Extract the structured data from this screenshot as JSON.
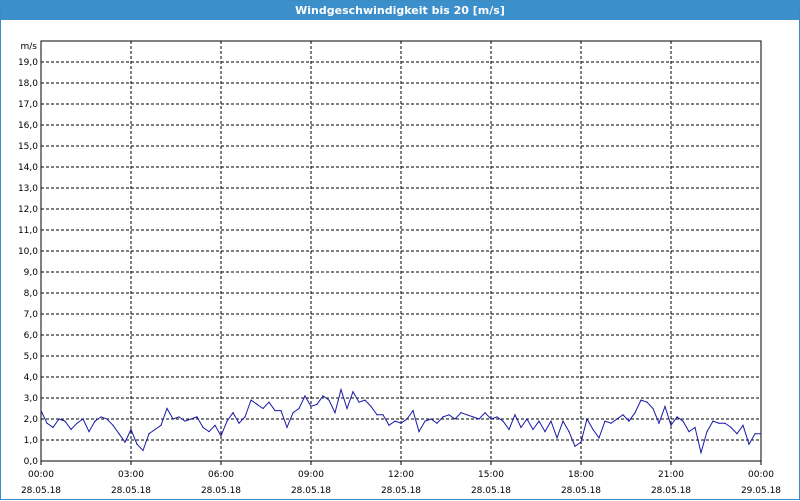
{
  "window": {
    "title": "Windgeschwindigkeit bis 20 [m/s]"
  },
  "colors": {
    "titlebar": "#3b8fca",
    "line": "#1a1aa6",
    "grid": "#000000"
  },
  "chart_data": {
    "type": "line",
    "title": "Windgeschwindigkeit bis 20 [m/s]",
    "ylabel": "m/s",
    "ylim": [
      0,
      20
    ],
    "xlim_hours": [
      0,
      24
    ],
    "grid": true,
    "y_ticks": [
      "0,0",
      "1,0",
      "2,0",
      "3,0",
      "4,0",
      "5,0",
      "6,0",
      "7,0",
      "8,0",
      "9,0",
      "10,0",
      "11,0",
      "12,0",
      "13,0",
      "14,0",
      "15,0",
      "16,0",
      "17,0",
      "18,0",
      "19,0"
    ],
    "x_ticks": [
      {
        "time": "00:00",
        "date": "28.05.18"
      },
      {
        "time": "03:00",
        "date": "28.05.18"
      },
      {
        "time": "06:00",
        "date": "28.05.18"
      },
      {
        "time": "09:00",
        "date": "28.05.18"
      },
      {
        "time": "12:00",
        "date": "28.05.18"
      },
      {
        "time": "15:00",
        "date": "28.05.18"
      },
      {
        "time": "18:00",
        "date": "28.05.18"
      },
      {
        "time": "21:00",
        "date": "28.05.18"
      },
      {
        "time": "00:00",
        "date": "29.05.18"
      }
    ],
    "series": [
      {
        "x_hours": [
          0.0,
          0.2,
          0.4,
          0.6,
          0.8,
          1.0,
          1.2,
          1.4,
          1.6,
          1.8,
          2.0,
          2.2,
          2.4,
          2.6,
          2.8,
          3.0,
          3.2,
          3.4,
          3.6,
          3.8,
          4.0,
          4.2,
          4.4,
          4.6,
          4.8,
          5.0,
          5.2,
          5.4,
          5.6,
          5.8,
          6.0,
          6.2,
          6.4,
          6.6,
          6.8,
          7.0,
          7.2,
          7.4,
          7.6,
          7.8,
          8.0,
          8.2,
          8.4,
          8.6,
          8.8,
          9.0,
          9.2,
          9.4,
          9.6,
          9.8,
          10.0,
          10.2,
          10.4,
          10.6,
          10.8,
          11.0,
          11.2,
          11.4,
          11.6,
          11.8,
          12.0,
          12.2,
          12.4,
          12.6,
          12.8,
          13.0,
          13.2,
          13.4,
          13.6,
          13.8,
          14.0,
          14.2,
          14.4,
          14.6,
          14.8,
          15.0,
          15.2,
          15.4,
          15.6,
          15.8,
          16.0,
          16.2,
          16.4,
          16.6,
          16.8,
          17.0,
          17.2,
          17.4,
          17.6,
          17.8,
          18.0,
          18.2,
          18.4,
          18.6,
          18.8,
          19.0,
          19.2,
          19.4,
          19.6,
          19.8,
          20.0,
          20.2,
          20.4,
          20.6,
          20.8,
          21.0,
          21.2,
          21.4,
          21.6,
          21.8,
          22.0,
          22.2,
          22.4,
          22.6,
          22.8,
          23.0,
          23.2,
          23.4,
          23.6,
          23.8,
          24.0
        ],
        "values": [
          2.4,
          1.8,
          1.6,
          2.0,
          1.9,
          1.5,
          1.8,
          2.0,
          1.4,
          1.9,
          2.1,
          2.0,
          1.7,
          1.3,
          0.9,
          1.5,
          0.8,
          0.5,
          1.3,
          1.5,
          1.7,
          2.5,
          2.0,
          2.1,
          1.9,
          2.0,
          2.1,
          1.6,
          1.4,
          1.7,
          1.2,
          1.9,
          2.3,
          1.8,
          2.1,
          2.9,
          2.7,
          2.5,
          2.8,
          2.4,
          2.4,
          1.6,
          2.3,
          2.5,
          3.1,
          2.6,
          2.7,
          3.1,
          2.9,
          2.3,
          3.4,
          2.5,
          3.3,
          2.8,
          2.9,
          2.6,
          2.2,
          2.2,
          1.7,
          1.9,
          1.8,
          2.0,
          2.4,
          1.4,
          1.9,
          2.0,
          1.8,
          2.1,
          2.2,
          2.0,
          2.3,
          2.2,
          2.1,
          2.0,
          2.3,
          2.0,
          2.1,
          1.9,
          1.5,
          2.2,
          1.6,
          2.0,
          1.5,
          1.9,
          1.4,
          1.9,
          1.1,
          1.9,
          1.4,
          0.7,
          0.9,
          2.0,
          1.5,
          1.1,
          1.9,
          1.8,
          2.0,
          2.2,
          1.9,
          2.3,
          2.9,
          2.8,
          2.5,
          1.8,
          2.6,
          1.7,
          2.1,
          1.9,
          1.4,
          1.6,
          0.4,
          1.4,
          1.9,
          1.8,
          1.8,
          1.6,
          1.3,
          1.7,
          0.8,
          1.3,
          1.3
        ]
      }
    ]
  }
}
